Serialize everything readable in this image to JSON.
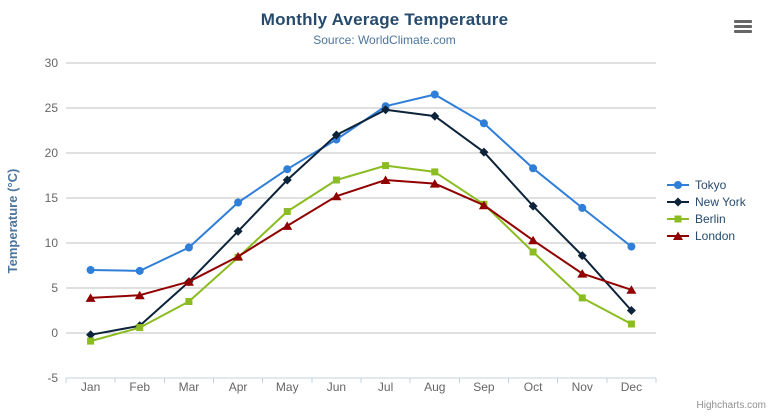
{
  "header": {
    "title": "Monthly Average Temperature",
    "subtitle": "Source: WorldClimate.com"
  },
  "credits": {
    "label": "Highcharts.com"
  },
  "export_menu": {
    "icon": "hamburger-menu-icon"
  },
  "theme": {
    "background": "#ffffff",
    "title_color": "#274b6d",
    "subtitle_color": "#4d759e",
    "axis_label_color": "#666666",
    "axis_title_color": "#4d759e",
    "grid_line_color": "#c0c0c0",
    "axis_line_color": "#c0d0e0",
    "legend_text_color": "#274b6d",
    "credits_color": "#909090",
    "export_icon_color": "#666666"
  },
  "chart_data": {
    "type": "line",
    "title": "Monthly Average Temperature",
    "subtitle": "Source: WorldClimate.com",
    "xlabel": "",
    "ylabel": "Temperature (°C)",
    "categories": [
      "Jan",
      "Feb",
      "Mar",
      "Apr",
      "May",
      "Jun",
      "Jul",
      "Aug",
      "Sep",
      "Oct",
      "Nov",
      "Dec"
    ],
    "ylim": [
      -5,
      30
    ],
    "yticks": [
      -5,
      0,
      5,
      10,
      15,
      20,
      25,
      30
    ],
    "grid": true,
    "legend_position": "right",
    "series": [
      {
        "name": "Tokyo",
        "color": "#2f7ed8",
        "marker": "circle",
        "values": [
          7.0,
          6.9,
          9.5,
          14.5,
          18.2,
          21.5,
          25.2,
          26.5,
          23.3,
          18.3,
          13.9,
          9.6
        ]
      },
      {
        "name": "New York",
        "color": "#0d233a",
        "marker": "diamond",
        "values": [
          -0.2,
          0.8,
          5.7,
          11.3,
          17.0,
          22.0,
          24.8,
          24.1,
          20.1,
          14.1,
          8.6,
          2.5
        ]
      },
      {
        "name": "Berlin",
        "color": "#8bbc21",
        "marker": "square",
        "values": [
          -0.9,
          0.6,
          3.5,
          8.4,
          13.5,
          17.0,
          18.6,
          17.9,
          14.3,
          9.0,
          3.9,
          1.0
        ]
      },
      {
        "name": "London",
        "color": "#910000",
        "marker": "triangle",
        "values": [
          3.9,
          4.2,
          5.7,
          8.5,
          11.9,
          15.2,
          17.0,
          16.6,
          14.2,
          10.3,
          6.6,
          4.8
        ]
      }
    ]
  }
}
